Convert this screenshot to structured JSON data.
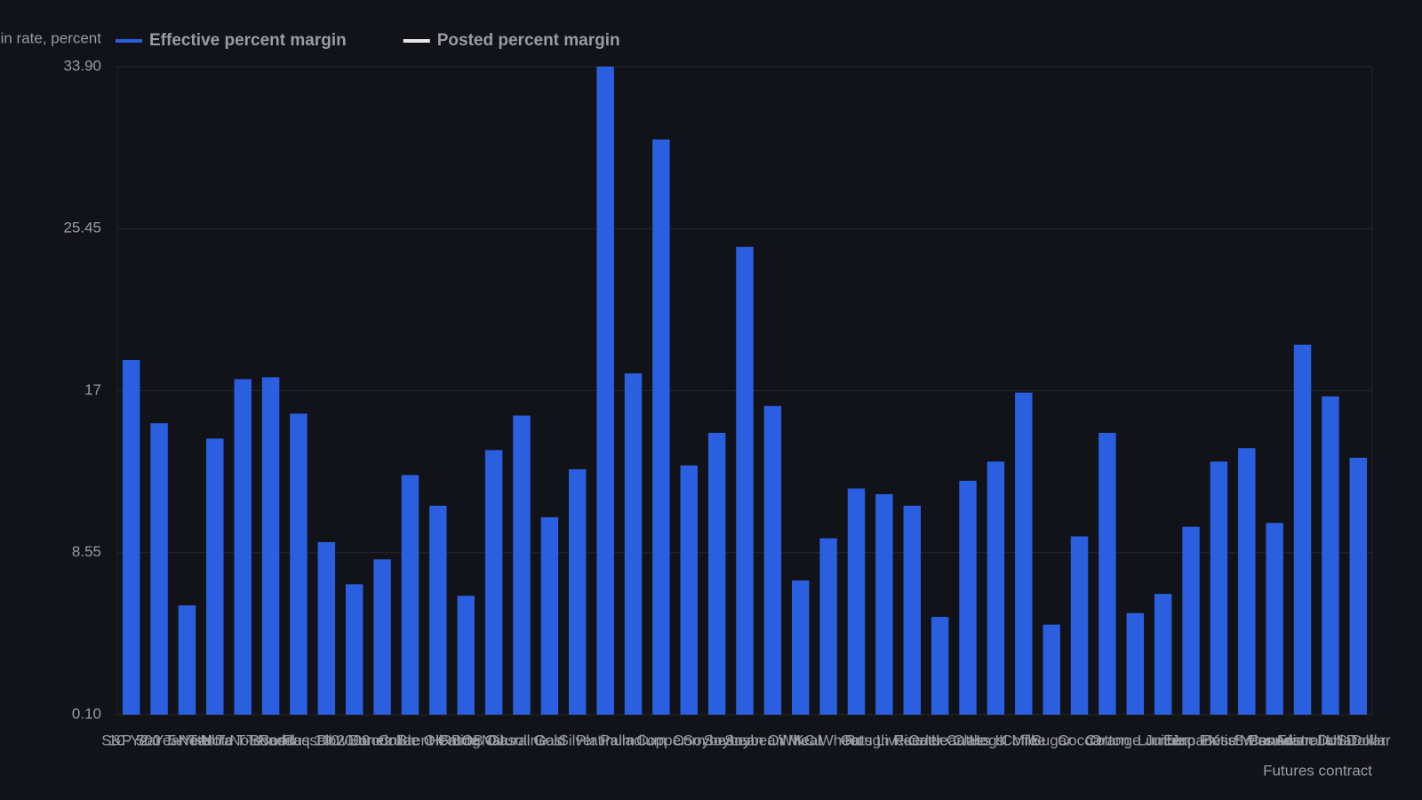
{
  "chart_data": {
    "type": "bar",
    "ylabel": "Margin rate, percent",
    "xlabel": "Futures contract",
    "categories": [
      "S&P 500",
      "10-Year T-Note",
      "2-Year T-Note",
      "5-Year T-Note",
      "Ultra T-Bond",
      "T-Bond",
      "Nasdaq 100",
      "Russell 2000",
      "Dow Jones",
      "Eurodollar",
      "Crude Oil",
      "Brent Crude",
      "Heating Oil",
      "RBOB Gasoline",
      "Natural Gas",
      "Gold",
      "Silver",
      "Platinum",
      "Palladium",
      "Copper",
      "Corn",
      "Soybeans",
      "Soybean Oil",
      "Soybean Meal",
      "Wheat",
      "KC Wheat",
      "Oats",
      "Rough Rice",
      "Live Cattle",
      "Feeder Cattle",
      "Lean Hogs",
      "Class III Milk",
      "Coffee",
      "Sugar",
      "Cocoa",
      "Cotton",
      "Orange Juice",
      "Lumber",
      "Euro FX",
      "Japanese Yen",
      "British Pound",
      "Swiss Franc",
      "Canadian Dollar",
      "Australian Dollar",
      "US Dollar"
    ],
    "series": [
      {
        "name": "Effective percent margin",
        "color": "#2a5fe0",
        "values": [
          18.6,
          15.3,
          5.8,
          14.5,
          17.6,
          17.7,
          15.8,
          9.1,
          6.9,
          8.2,
          12.6,
          11.0,
          6.3,
          13.9,
          15.7,
          10.4,
          12.9,
          33.9,
          17.9,
          30.1,
          13.1,
          14.8,
          24.5,
          16.2,
          7.1,
          9.3,
          11.9,
          11.6,
          11.0,
          5.2,
          12.3,
          13.3,
          16.9,
          4.8,
          9.4,
          14.8,
          5.4,
          6.4,
          9.9,
          13.3,
          14.0,
          10.1,
          19.4,
          16.7,
          13.5
        ]
      },
      {
        "name": "Posted percent margin",
        "color": "#e8e8e8"
      }
    ],
    "ylim": [
      0.1,
      33.9
    ],
    "yticks": [
      {
        "value": 0.1,
        "label": "0.10"
      },
      {
        "value": 8.55,
        "label": "8.55"
      },
      17,
      {
        "value": 25.45,
        "label": "25.45"
      },
      {
        "value": 33.9,
        "label": "33.90"
      }
    ],
    "grid": true
  }
}
